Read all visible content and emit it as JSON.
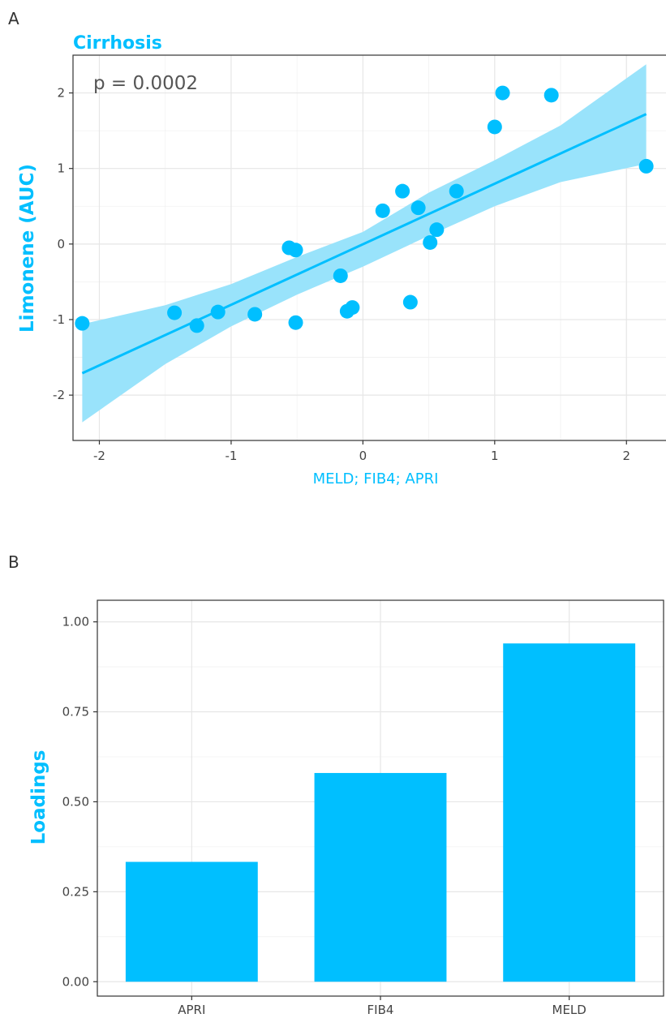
{
  "panel_a_label": "A",
  "panel_b_label": "B",
  "chart_data": [
    {
      "type": "scatter",
      "title": "Cirrhosis",
      "annotation": "p = 0.0002",
      "xlabel": "MELD; FIB4; APRI",
      "ylabel": "Limonene (AUC)",
      "xlim": [
        -2.2,
        2.3
      ],
      "ylim": [
        -2.6,
        2.5
      ],
      "x_ticks": [
        -2,
        -1,
        0,
        1,
        2
      ],
      "y_ticks": [
        -2,
        -1,
        0,
        1,
        2
      ],
      "grid": true,
      "color": "#00bfff",
      "band_color": "#99e3fb",
      "points": [
        {
          "x": -2.13,
          "y": -1.05
        },
        {
          "x": -1.43,
          "y": -0.91
        },
        {
          "x": -1.26,
          "y": -1.08
        },
        {
          "x": -1.1,
          "y": -0.9
        },
        {
          "x": -0.82,
          "y": -0.93
        },
        {
          "x": -0.56,
          "y": -0.05
        },
        {
          "x": -0.51,
          "y": -0.08
        },
        {
          "x": -0.51,
          "y": -1.04
        },
        {
          "x": -0.17,
          "y": -0.42
        },
        {
          "x": -0.12,
          "y": -0.89
        },
        {
          "x": -0.08,
          "y": -0.84
        },
        {
          "x": 0.15,
          "y": 0.44
        },
        {
          "x": 0.3,
          "y": 0.7
        },
        {
          "x": 0.36,
          "y": -0.77
        },
        {
          "x": 0.42,
          "y": 0.48
        },
        {
          "x": 0.51,
          "y": 0.02
        },
        {
          "x": 0.56,
          "y": 0.19
        },
        {
          "x": 0.71,
          "y": 0.7
        },
        {
          "x": 1.0,
          "y": 1.55
        },
        {
          "x": 1.06,
          "y": 2.0
        },
        {
          "x": 1.43,
          "y": 1.97
        },
        {
          "x": 2.15,
          "y": 1.03
        }
      ],
      "fit_line": {
        "x": [
          -2.13,
          2.15
        ],
        "y": [
          -1.71,
          1.72
        ]
      },
      "confidence_band": {
        "x": [
          -2.13,
          -1.5,
          -1.0,
          -0.5,
          0.0,
          0.5,
          1.0,
          1.5,
          2.15
        ],
        "lower": [
          -2.36,
          -1.59,
          -1.09,
          -0.67,
          -0.3,
          0.11,
          0.5,
          0.82,
          1.06
        ],
        "upper": [
          -1.06,
          -0.81,
          -0.53,
          -0.17,
          0.16,
          0.68,
          1.11,
          1.57,
          2.38
        ]
      }
    },
    {
      "type": "bar",
      "title": "",
      "xlabel": "",
      "ylabel": "Loadings",
      "categories": [
        "APRI",
        "FIB4",
        "MELD"
      ],
      "values": [
        0.333,
        0.58,
        0.94
      ],
      "ylim": [
        -0.04,
        1.06
      ],
      "y_ticks": [
        "0.00",
        "0.25",
        "0.50",
        "0.75",
        "1.00"
      ],
      "grid": true,
      "color": "#00bfff"
    }
  ]
}
